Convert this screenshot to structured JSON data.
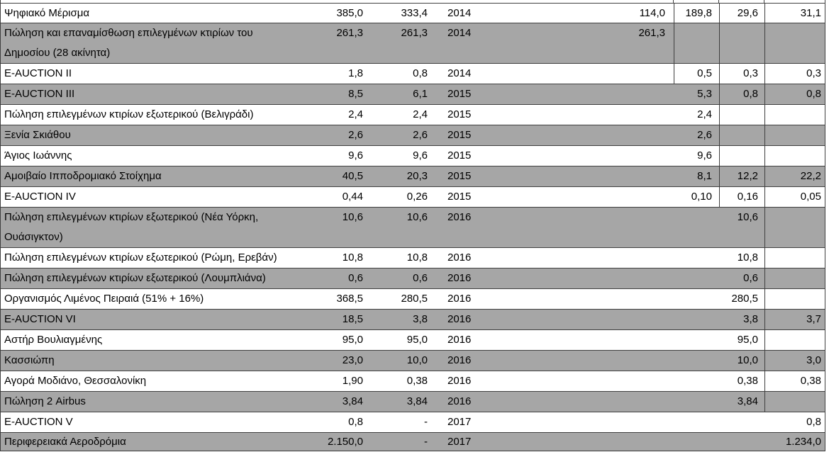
{
  "table": {
    "columns": [
      "name",
      "v1",
      "v2",
      "year",
      "v3",
      "v4",
      "v5",
      "v6"
    ],
    "colors": {
      "row_shade_gray": "#a6a6a6",
      "row_white": "#ffffff",
      "border": "#3f3f3f",
      "text": "#000000"
    },
    "rows": [
      {
        "name": "Ψηφιακό Μέρισμα",
        "v1": "385,0",
        "v2": "333,4",
        "year": "2014",
        "v3": "114,0",
        "v4": "189,8",
        "v5": "29,6",
        "v6": "31,1",
        "shade": "white",
        "lines": 1
      },
      {
        "name": "Πώληση και επαναμίσθωση επιλεγμένων κτιρίων του\nΔημοσίου (28 ακίνητα)",
        "v1": "261,3",
        "v2": "261,3",
        "year": "2014",
        "v3": "261,3",
        "shade": "gray",
        "lines": 2
      },
      {
        "name": "E-AUCTION II",
        "v1": "1,8",
        "v2": "0,8",
        "year": "2014",
        "v4": "0,5",
        "v5": "0,3",
        "v6": "0,3",
        "shade": "white",
        "lines": 1
      },
      {
        "name": "E-AUCTION III",
        "v1": "8,5",
        "v2": "6,1",
        "year": "2015",
        "v4": "5,3",
        "v5": "0,8",
        "v6": "0,8",
        "shade": "gray",
        "lines": 1
      },
      {
        "name": "Πώληση επιλεγμένων κτιρίων εξωτερικού (Βελιγράδι)",
        "v1": "2,4",
        "v2": "2,4",
        "year": "2015",
        "v4": "2,4",
        "shade": "white",
        "lines": 1
      },
      {
        "name": "Ξενία Σκιάθου",
        "v1": "2,6",
        "v2": "2,6",
        "year": "2015",
        "v4": "2,6",
        "shade": "gray",
        "lines": 1
      },
      {
        "name": "Άγιος Ιωάννης",
        "v1": "9,6",
        "v2": "9,6",
        "year": "2015",
        "v4": "9,6",
        "shade": "white",
        "lines": 1
      },
      {
        "name": "Αμοιβαίο Ιπποδρομιακό Στοίχημα",
        "v1": "40,5",
        "v2": "20,3",
        "year": "2015",
        "v4": "8,1",
        "v5": "12,2",
        "v6": "22,2",
        "shade": "gray",
        "lines": 1
      },
      {
        "name": "E-AUCTION IV",
        "v1": "0,44",
        "v2": "0,26",
        "year": "2015",
        "v4": "0,10",
        "v5": "0,16",
        "v6": "0,05",
        "shade": "white",
        "lines": 1
      },
      {
        "name": "Πώληση επιλεγμένων κτιρίων εξωτερικού (Νέα Υόρκη,\nΟυάσιγκτον)",
        "v1": "10,6",
        "v2": "10,6",
        "year": "2016",
        "v5": "10,6",
        "shade": "gray",
        "lines": 2
      },
      {
        "name": "Πώληση επιλεγμένων κτιρίων εξωτερικού (Ρώμη, Ερεβάν)",
        "v1": "10,8",
        "v2": "10,8",
        "year": "2016",
        "v5": "10,8",
        "shade": "white",
        "lines": 1
      },
      {
        "name": "Πώληση επιλεγμένων κτιρίων εξωτερικού (Λουμπλιάνα)",
        "v1": "0,6",
        "v2": "0,6",
        "year": "2016",
        "v5": "0,6",
        "shade": "gray",
        "lines": 1
      },
      {
        "name": "Οργανισμός Λιμένος Πειραιά (51% + 16%)",
        "v1": "368,5",
        "v2": "280,5",
        "year": "2016",
        "v5": "280,5",
        "shade": "white",
        "lines": 1
      },
      {
        "name": "E-AUCTION VI",
        "v1": "18,5",
        "v2": "3,8",
        "year": "2016",
        "v5": "3,8",
        "v6": "3,7",
        "shade": "gray",
        "lines": 1
      },
      {
        "name": "Αστήρ Βουλιαγμένης",
        "v1": "95,0",
        "v2": "95,0",
        "year": "2016",
        "v5": "95,0",
        "shade": "white",
        "lines": 1
      },
      {
        "name": "Κασσιώπη",
        "v1": "23,0",
        "v2": "10,0",
        "year": "2016",
        "v5": "10,0",
        "v6": "3,0",
        "shade": "gray",
        "lines": 1
      },
      {
        "name": "Αγορά Μοδιάνο, Θεσσαλονίκη",
        "v1": "1,90",
        "v2": "0,38",
        "year": "2016",
        "v5": "0,38",
        "v6": "0,38",
        "shade": "white",
        "lines": 1
      },
      {
        "name": "Πώληση 2 Airbus",
        "v1": "3,84",
        "v2": "3,84",
        "year": "2016",
        "v5": "3,84",
        "shade": "gray",
        "lines": 1
      },
      {
        "name": "E-AUCTION V",
        "v1": "0,8",
        "v2": "-",
        "year": "2017",
        "v6": "0,8",
        "shade": "white",
        "lines": 1
      },
      {
        "name": "Περιφερειακά Αεροδρόμια",
        "v1": "2.150,0",
        "v2": "-",
        "year": "2017",
        "v6": "1.234,0",
        "shade": "gray",
        "lines": 1
      }
    ]
  }
}
